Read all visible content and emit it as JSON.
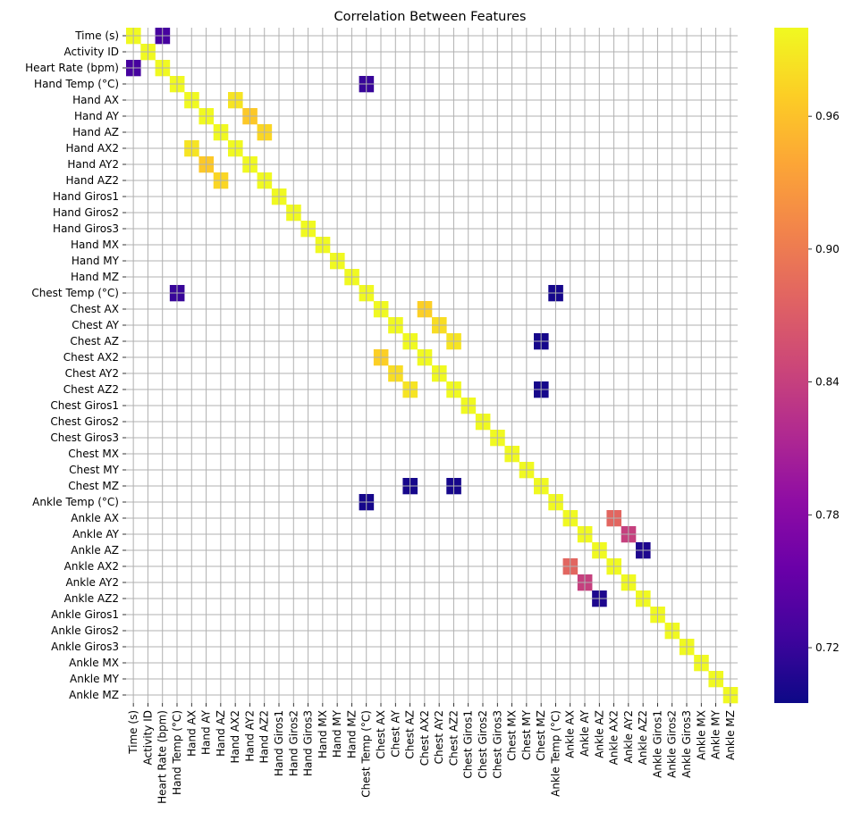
{
  "chart_data": {
    "type": "heatmap",
    "title": "Correlation Between Features",
    "features": [
      "Time (s)",
      "Activity ID",
      "Heart Rate (bpm)",
      "Hand Temp (°C)",
      "Hand AX",
      "Hand AY",
      "Hand AZ",
      "Hand AX2",
      "Hand AY2",
      "Hand AZ2",
      "Hand Giros1",
      "Hand Giros2",
      "Hand Giros3",
      "Hand MX",
      "Hand MY",
      "Hand MZ",
      "Chest Temp (°C)",
      "Chest AX",
      "Chest AY",
      "Chest AZ",
      "Chest AX2",
      "Chest AY2",
      "Chest AZ2",
      "Chest Giros1",
      "Chest Giros2",
      "Chest Giros3",
      "Chest MX",
      "Chest MY",
      "Chest MZ",
      "Ankle Temp (°C)",
      "Ankle AX",
      "Ankle AY",
      "Ankle AZ",
      "Ankle AX2",
      "Ankle AY2",
      "Ankle AZ2",
      "Ankle Giros1",
      "Ankle Giros2",
      "Ankle Giros3",
      "Ankle MX",
      "Ankle MY",
      "Ankle MZ"
    ],
    "diagonal_value": 1.0,
    "cells": [
      {
        "row": 0,
        "col": 2,
        "value": 0.73
      },
      {
        "row": 2,
        "col": 0,
        "value": 0.73
      },
      {
        "row": 3,
        "col": 16,
        "value": 0.72
      },
      {
        "row": 16,
        "col": 3,
        "value": 0.72
      },
      {
        "row": 16,
        "col": 29,
        "value": 0.7
      },
      {
        "row": 29,
        "col": 16,
        "value": 0.7
      },
      {
        "row": 4,
        "col": 7,
        "value": 0.985
      },
      {
        "row": 7,
        "col": 4,
        "value": 0.985
      },
      {
        "row": 5,
        "col": 8,
        "value": 0.965
      },
      {
        "row": 8,
        "col": 5,
        "value": 0.965
      },
      {
        "row": 6,
        "col": 9,
        "value": 0.975
      },
      {
        "row": 9,
        "col": 6,
        "value": 0.975
      },
      {
        "row": 17,
        "col": 20,
        "value": 0.97
      },
      {
        "row": 20,
        "col": 17,
        "value": 0.97
      },
      {
        "row": 18,
        "col": 21,
        "value": 0.98
      },
      {
        "row": 21,
        "col": 18,
        "value": 0.98
      },
      {
        "row": 19,
        "col": 22,
        "value": 0.985
      },
      {
        "row": 22,
        "col": 19,
        "value": 0.985
      },
      {
        "row": 19,
        "col": 28,
        "value": 0.7
      },
      {
        "row": 28,
        "col": 19,
        "value": 0.7
      },
      {
        "row": 22,
        "col": 28,
        "value": 0.7
      },
      {
        "row": 28,
        "col": 22,
        "value": 0.7
      },
      {
        "row": 30,
        "col": 33,
        "value": 0.88
      },
      {
        "row": 33,
        "col": 30,
        "value": 0.88
      },
      {
        "row": 31,
        "col": 34,
        "value": 0.84
      },
      {
        "row": 34,
        "col": 31,
        "value": 0.84
      },
      {
        "row": 32,
        "col": 35,
        "value": 0.705
      },
      {
        "row": 35,
        "col": 32,
        "value": 0.705
      }
    ],
    "colorbar": {
      "vmin": 0.695,
      "vmax": 1.0,
      "colormap": "plasma",
      "ticks": [
        0.72,
        0.78,
        0.84,
        0.9,
        0.96
      ]
    },
    "grid": true,
    "legend": "colorbar-right"
  }
}
